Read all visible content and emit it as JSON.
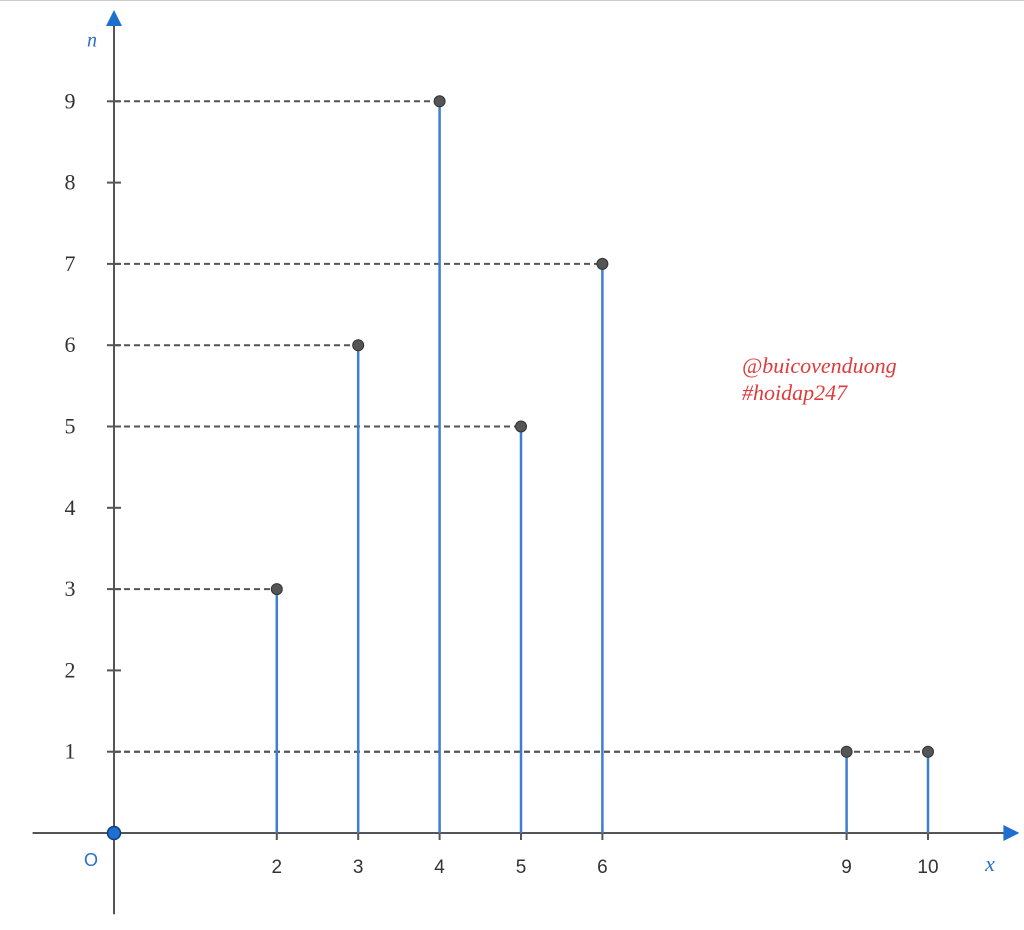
{
  "chart_data": {
    "type": "stem",
    "x": [
      2,
      3,
      4,
      5,
      6,
      9,
      10
    ],
    "values": [
      3,
      6,
      9,
      5,
      7,
      1,
      1
    ],
    "xlabel": "x",
    "ylabel": "n",
    "origin_label": "O",
    "xlim": [
      -1,
      11
    ],
    "ylim": [
      -1,
      10
    ],
    "xticks": [
      2,
      3,
      4,
      5,
      6,
      9,
      10
    ],
    "yticks": [
      1,
      2,
      3,
      4,
      5,
      6,
      7,
      8,
      9
    ],
    "color": "#3f7fcf",
    "point_color": "#555555",
    "axis_color": "#555555",
    "guide_lines": true,
    "annotations": [
      "@buicovenduong",
      "#hoidap247"
    ],
    "annotation_color": "#e03a3a"
  }
}
